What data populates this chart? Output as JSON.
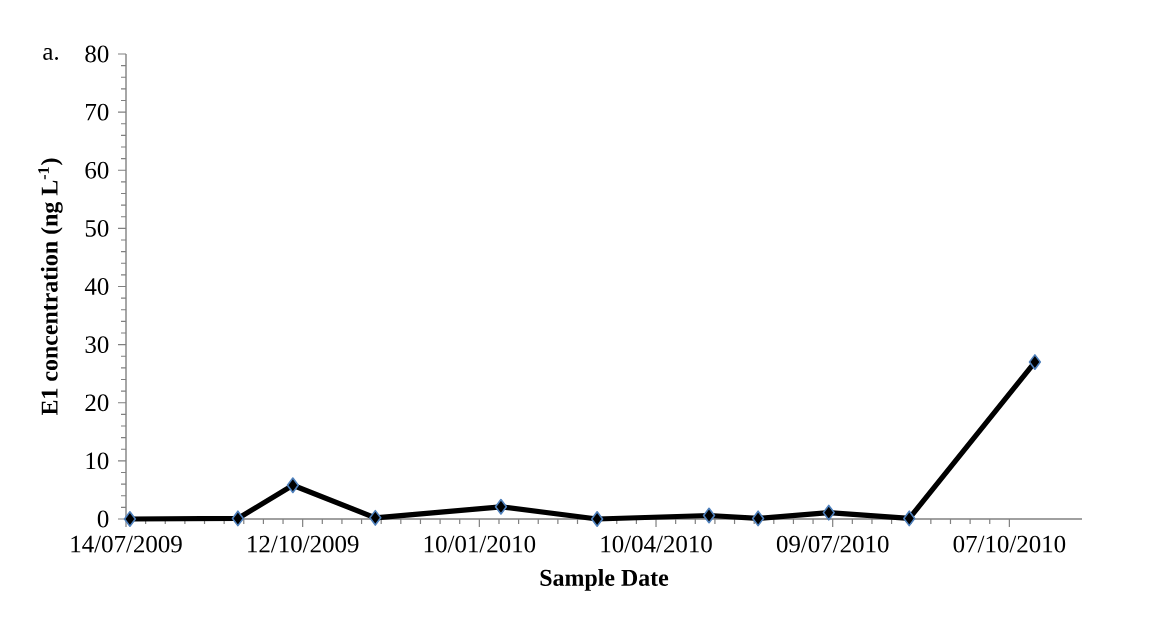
{
  "chart_data": {
    "type": "line",
    "xlabel": "Sample Date",
    "ylabel": "E1 concentration (ng L$^{-1}$)",
    "annotations": [
      "a."
    ],
    "x": [
      "2009-07-16",
      "2009-09-09",
      "2009-10-07",
      "2009-11-18",
      "2010-01-21",
      "2010-03-11",
      "2010-05-07",
      "2010-06-01",
      "2010-07-07",
      "2010-08-17",
      "2010-10-20"
    ],
    "values": [
      0,
      0.1,
      5.8,
      0.2,
      2.1,
      0,
      0.6,
      0.1,
      1.1,
      0.1,
      27.0
    ],
    "color": "#000000",
    "marker": "diamond",
    "line_style": "solid",
    "xlim": [
      "2009-07-14",
      "2010-11-13"
    ],
    "xticks": [
      {
        "value": "2009-07-14",
        "label": "14/07/2009"
      },
      {
        "value": "2009-10-12",
        "label": "12/10/2009"
      },
      {
        "value": "2010-01-10",
        "label": "10/01/2010"
      },
      {
        "value": "2010-04-10",
        "label": "10/04/2010"
      },
      {
        "value": "2010-07-09",
        "label": "09/07/2010"
      },
      {
        "value": "2010-10-07",
        "label": "07/10/2010"
      }
    ],
    "ylim": [
      0,
      80
    ],
    "yticks": [
      0,
      10,
      20,
      30,
      40,
      50,
      60,
      70,
      80
    ]
  }
}
